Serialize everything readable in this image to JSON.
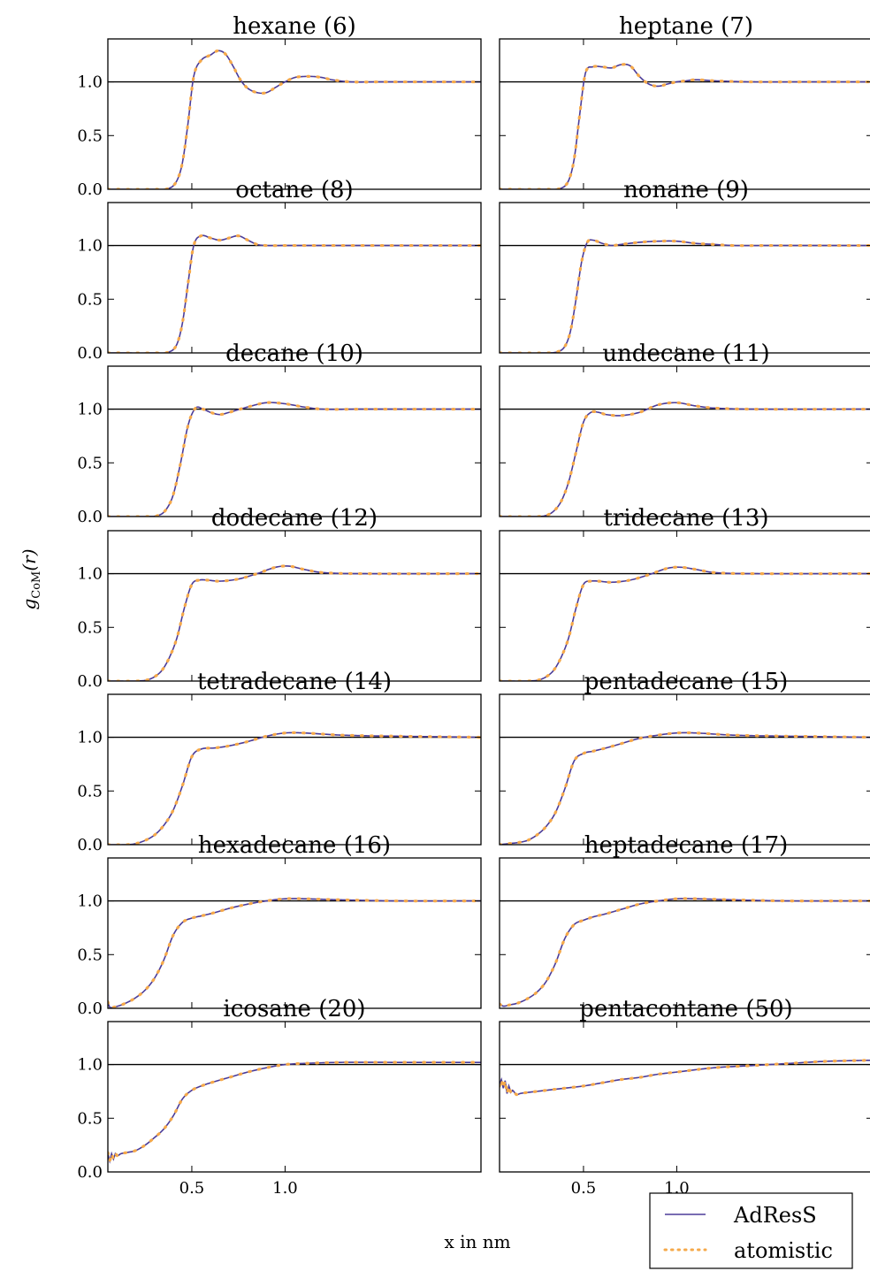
{
  "figure": {
    "xlabel": "x in nm",
    "ylabel": "g",
    "ylabel_sub": "CoM",
    "ylabel_arg": "(r)",
    "legend": {
      "position": "bottom-right",
      "entries": [
        {
          "name": "AdResS",
          "style": "solid",
          "color": "#4b3c99"
        },
        {
          "name": "atomistic",
          "style": "dotted",
          "color": "#f5a94a"
        }
      ]
    },
    "reference_line": 1.0,
    "reference_color": "#000000"
  },
  "chart_data": [
    {
      "type": "line",
      "title": "hexane (6)",
      "xlim": [
        0.05,
        2.05
      ],
      "ylim": [
        0,
        1.4
      ],
      "yticks": [
        "0.0",
        "0.5",
        "1.0"
      ],
      "xticks": [],
      "series": [
        {
          "name": "AdResS",
          "x": [
            0.05,
            0.3,
            0.38,
            0.42,
            0.45,
            0.48,
            0.51,
            0.55,
            0.6,
            0.64,
            0.68,
            0.72,
            0.76,
            0.8,
            0.85,
            0.9,
            0.95,
            1.0,
            1.05,
            1.1,
            1.15,
            1.2,
            1.25,
            1.35,
            1.5,
            1.7,
            2.05
          ],
          "y": [
            0,
            0,
            0.01,
            0.08,
            0.25,
            0.62,
            1.05,
            1.2,
            1.25,
            1.29,
            1.26,
            1.15,
            1.02,
            0.94,
            0.9,
            0.9,
            0.95,
            1.0,
            1.04,
            1.05,
            1.05,
            1.04,
            1.02,
            1.0,
            1.0,
            1.0,
            1.0
          ]
        }
      ]
    },
    {
      "type": "line",
      "title": "heptane (7)",
      "xlim": [
        0.05,
        2.05
      ],
      "ylim": [
        0,
        1.4
      ],
      "yticks": [],
      "xticks": [],
      "series": [
        {
          "name": "AdResS",
          "x": [
            0.05,
            0.3,
            0.38,
            0.42,
            0.45,
            0.48,
            0.51,
            0.55,
            0.6,
            0.65,
            0.7,
            0.75,
            0.8,
            0.85,
            0.9,
            0.95,
            1.0,
            1.05,
            1.1,
            1.2,
            1.4,
            1.7,
            2.05
          ],
          "y": [
            0,
            0,
            0.01,
            0.08,
            0.28,
            0.7,
            1.08,
            1.14,
            1.14,
            1.13,
            1.16,
            1.15,
            1.05,
            0.98,
            0.96,
            0.98,
            1.0,
            1.01,
            1.02,
            1.01,
            1.0,
            1.0,
            1.0
          ]
        }
      ]
    },
    {
      "type": "line",
      "title": "octane (8)",
      "xlim": [
        0.05,
        2.05
      ],
      "ylim": [
        0,
        1.4
      ],
      "yticks": [
        "0.0",
        "0.5",
        "1.0"
      ],
      "xticks": [],
      "series": [
        {
          "name": "AdResS",
          "x": [
            0.05,
            0.3,
            0.38,
            0.42,
            0.45,
            0.48,
            0.51,
            0.55,
            0.6,
            0.65,
            0.7,
            0.75,
            0.8,
            0.85,
            0.9,
            1.0,
            1.2,
            1.5,
            2.05
          ],
          "y": [
            0,
            0,
            0.01,
            0.08,
            0.28,
            0.65,
            1.0,
            1.09,
            1.07,
            1.05,
            1.07,
            1.09,
            1.05,
            1.01,
            1.0,
            1.0,
            1.0,
            1.0,
            1.0
          ]
        }
      ]
    },
    {
      "type": "line",
      "title": "nonane (9)",
      "xlim": [
        0.05,
        2.05
      ],
      "ylim": [
        0,
        1.4
      ],
      "yticks": [],
      "xticks": [],
      "series": [
        {
          "name": "AdResS",
          "x": [
            0.05,
            0.3,
            0.36,
            0.4,
            0.43,
            0.46,
            0.49,
            0.52,
            0.55,
            0.6,
            0.65,
            0.7,
            0.8,
            0.9,
            1.0,
            1.1,
            1.2,
            1.3,
            1.5,
            2.05
          ],
          "y": [
            0,
            0,
            0.01,
            0.06,
            0.2,
            0.5,
            0.85,
            1.03,
            1.05,
            1.02,
            1.0,
            1.01,
            1.03,
            1.04,
            1.04,
            1.02,
            1.01,
            1.0,
            1.0,
            1.0
          ]
        }
      ]
    },
    {
      "type": "line",
      "title": "decane (10)",
      "xlim": [
        0.05,
        2.05
      ],
      "ylim": [
        0,
        1.4
      ],
      "yticks": [
        "0.0",
        "0.5",
        "1.0"
      ],
      "xticks": [],
      "series": [
        {
          "name": "AdResS",
          "x": [
            0.05,
            0.25,
            0.32,
            0.36,
            0.4,
            0.44,
            0.48,
            0.52,
            0.56,
            0.6,
            0.65,
            0.7,
            0.8,
            0.9,
            1.0,
            1.1,
            1.2,
            1.4,
            2.05
          ],
          "y": [
            0,
            0,
            0.01,
            0.06,
            0.2,
            0.5,
            0.85,
            1.01,
            1.0,
            0.97,
            0.95,
            0.97,
            1.02,
            1.06,
            1.05,
            1.02,
            1.0,
            1.0,
            1.0
          ]
        }
      ]
    },
    {
      "type": "line",
      "title": "undecane (11)",
      "xlim": [
        0.05,
        2.05
      ],
      "ylim": [
        0,
        1.4
      ],
      "yticks": [],
      "xticks": [],
      "series": [
        {
          "name": "AdResS",
          "x": [
            0.05,
            0.25,
            0.3,
            0.34,
            0.38,
            0.42,
            0.46,
            0.5,
            0.54,
            0.58,
            0.62,
            0.7,
            0.8,
            0.9,
            1.0,
            1.1,
            1.2,
            1.4,
            2.05
          ],
          "y": [
            0,
            0,
            0.01,
            0.05,
            0.14,
            0.32,
            0.6,
            0.88,
            0.97,
            0.97,
            0.95,
            0.94,
            0.97,
            1.04,
            1.06,
            1.03,
            1.01,
            1.0,
            1.0
          ]
        }
      ]
    },
    {
      "type": "line",
      "title": "dodecane (12)",
      "xlim": [
        0.05,
        2.05
      ],
      "ylim": [
        0,
        1.4
      ],
      "yticks": [
        "0.0",
        "0.5",
        "1.0"
      ],
      "xticks": [],
      "series": [
        {
          "name": "AdResS",
          "x": [
            0.05,
            0.2,
            0.26,
            0.3,
            0.34,
            0.38,
            0.42,
            0.46,
            0.5,
            0.54,
            0.58,
            0.65,
            0.75,
            0.85,
            0.95,
            1.02,
            1.1,
            1.2,
            1.4,
            2.05
          ],
          "y": [
            0,
            0,
            0.01,
            0.04,
            0.1,
            0.22,
            0.4,
            0.68,
            0.9,
            0.94,
            0.94,
            0.93,
            0.95,
            1.0,
            1.06,
            1.07,
            1.04,
            1.01,
            1.0,
            1.0
          ]
        }
      ]
    },
    {
      "type": "line",
      "title": "tridecane (13)",
      "xlim": [
        0.05,
        2.05
      ],
      "ylim": [
        0,
        1.4
      ],
      "yticks": [],
      "xticks": [],
      "series": [
        {
          "name": "AdResS",
          "x": [
            0.05,
            0.2,
            0.26,
            0.3,
            0.34,
            0.38,
            0.42,
            0.46,
            0.5,
            0.54,
            0.58,
            0.65,
            0.75,
            0.85,
            0.95,
            1.02,
            1.1,
            1.2,
            1.4,
            2.05
          ],
          "y": [
            0,
            0,
            0.01,
            0.04,
            0.1,
            0.22,
            0.4,
            0.68,
            0.9,
            0.93,
            0.93,
            0.92,
            0.94,
            0.99,
            1.05,
            1.06,
            1.04,
            1.01,
            1.0,
            1.0
          ]
        }
      ]
    },
    {
      "type": "line",
      "title": "tetradecane (14)",
      "xlim": [
        0.05,
        2.05
      ],
      "ylim": [
        0,
        1.4
      ],
      "yticks": [
        "0.0",
        "0.5",
        "1.0"
      ],
      "xticks": [],
      "series": [
        {
          "name": "AdResS",
          "x": [
            0.05,
            0.15,
            0.2,
            0.25,
            0.3,
            0.35,
            0.4,
            0.45,
            0.5,
            0.55,
            0.62,
            0.7,
            0.8,
            0.9,
            1.0,
            1.1,
            1.3,
            1.6,
            2.05
          ],
          "y": [
            0,
            0,
            0.01,
            0.04,
            0.09,
            0.18,
            0.32,
            0.55,
            0.82,
            0.89,
            0.9,
            0.92,
            0.96,
            1.01,
            1.04,
            1.04,
            1.02,
            1.01,
            1.0
          ]
        }
      ]
    },
    {
      "type": "line",
      "title": "pentadecane (15)",
      "xlim": [
        0.05,
        2.05
      ],
      "ylim": [
        0,
        1.4
      ],
      "yticks": [],
      "xticks": [],
      "series": [
        {
          "name": "AdResS",
          "x": [
            0.05,
            0.1,
            0.15,
            0.2,
            0.25,
            0.3,
            0.35,
            0.4,
            0.45,
            0.5,
            0.55,
            0.62,
            0.7,
            0.8,
            0.9,
            1.0,
            1.1,
            1.3,
            1.6,
            2.05
          ],
          "y": [
            0,
            0.01,
            0.02,
            0.04,
            0.09,
            0.17,
            0.3,
            0.52,
            0.78,
            0.85,
            0.87,
            0.9,
            0.94,
            0.99,
            1.02,
            1.04,
            1.04,
            1.02,
            1.01,
            1.0
          ]
        }
      ]
    },
    {
      "type": "line",
      "title": "hexadecane (16)",
      "xlim": [
        0.05,
        2.05
      ],
      "ylim": [
        0,
        1.4
      ],
      "yticks": [
        "0.0",
        "0.5",
        "1.0"
      ],
      "xticks": [],
      "series": [
        {
          "name": "AdResS",
          "x": [
            0.05,
            0.06,
            0.08,
            0.12,
            0.16,
            0.2,
            0.25,
            0.3,
            0.35,
            0.4,
            0.45,
            0.5,
            0.55,
            0.62,
            0.7,
            0.8,
            0.9,
            1.0,
            1.1,
            1.3,
            1.6,
            2.05
          ],
          "y": [
            0.06,
            0.01,
            0.01,
            0.03,
            0.06,
            0.1,
            0.17,
            0.28,
            0.45,
            0.68,
            0.8,
            0.84,
            0.86,
            0.89,
            0.93,
            0.97,
            1.0,
            1.02,
            1.02,
            1.01,
            1.0,
            1.0
          ]
        }
      ]
    },
    {
      "type": "line",
      "title": "heptadecane (17)",
      "xlim": [
        0.05,
        2.05
      ],
      "ylim": [
        0,
        1.4
      ],
      "yticks": [],
      "xticks": [],
      "series": [
        {
          "name": "AdResS",
          "x": [
            0.05,
            0.07,
            0.1,
            0.15,
            0.2,
            0.25,
            0.3,
            0.35,
            0.4,
            0.45,
            0.5,
            0.55,
            0.62,
            0.7,
            0.8,
            0.9,
            1.0,
            1.1,
            1.3,
            1.6,
            2.05
          ],
          "y": [
            0.04,
            0.02,
            0.03,
            0.05,
            0.09,
            0.15,
            0.25,
            0.42,
            0.65,
            0.78,
            0.82,
            0.85,
            0.88,
            0.92,
            0.97,
            1.0,
            1.02,
            1.02,
            1.01,
            1.0,
            1.0
          ]
        }
      ]
    },
    {
      "type": "line",
      "title": "icosane (20)",
      "xlim": [
        0.05,
        2.05
      ],
      "ylim": [
        0,
        1.4
      ],
      "yticks": [
        "0.0",
        "0.5",
        "1.0"
      ],
      "xticks": [
        "0.5",
        "1.0"
      ],
      "series": [
        {
          "name": "AdResS",
          "x": [
            0.05,
            0.06,
            0.07,
            0.08,
            0.09,
            0.1,
            0.12,
            0.15,
            0.2,
            0.25,
            0.3,
            0.35,
            0.4,
            0.45,
            0.5,
            0.55,
            0.62,
            0.7,
            0.8,
            0.9,
            1.0,
            1.1,
            1.3,
            1.6,
            2.05
          ],
          "y": [
            0.18,
            0.1,
            0.17,
            0.12,
            0.17,
            0.15,
            0.17,
            0.18,
            0.2,
            0.25,
            0.32,
            0.4,
            0.52,
            0.68,
            0.76,
            0.8,
            0.84,
            0.88,
            0.93,
            0.97,
            1.0,
            1.01,
            1.02,
            1.02,
            1.02
          ]
        }
      ]
    },
    {
      "type": "line",
      "title": "pentacontane (50)",
      "xlim": [
        0.05,
        2.05
      ],
      "ylim": [
        0,
        1.4
      ],
      "yticks": [],
      "xticks": [
        "0.5",
        "1.0"
      ],
      "series": [
        {
          "name": "AdResS",
          "x": [
            0.05,
            0.06,
            0.07,
            0.08,
            0.09,
            0.1,
            0.11,
            0.12,
            0.14,
            0.16,
            0.2,
            0.25,
            0.3,
            0.4,
            0.5,
            0.6,
            0.7,
            0.8,
            0.9,
            1.0,
            1.2,
            1.4,
            1.6,
            1.8,
            2.05
          ],
          "y": [
            0.8,
            0.86,
            0.78,
            0.85,
            0.73,
            0.8,
            0.74,
            0.76,
            0.72,
            0.73,
            0.74,
            0.75,
            0.76,
            0.78,
            0.8,
            0.83,
            0.86,
            0.88,
            0.91,
            0.93,
            0.97,
            0.99,
            1.01,
            1.03,
            1.04
          ]
        }
      ]
    }
  ]
}
